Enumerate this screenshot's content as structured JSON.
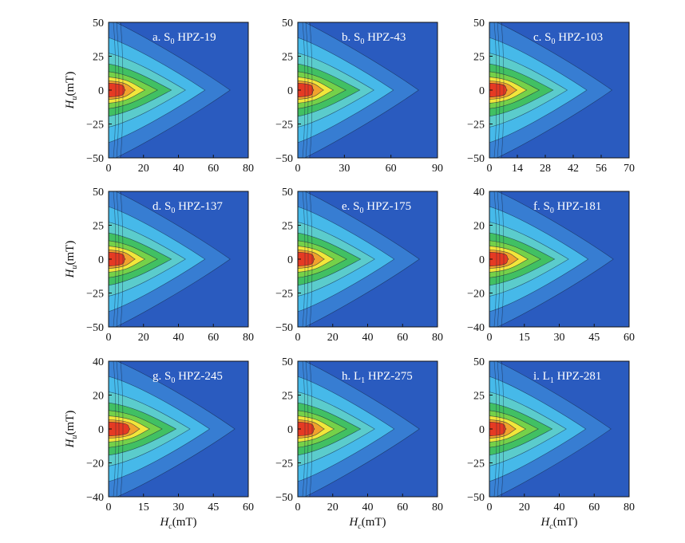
{
  "chart_data": [
    {
      "type": "heatmap",
      "panel_label": "a.",
      "sample_type": "S",
      "sample_sub": "0",
      "sample_id": "HPZ-19",
      "xlabel": "",
      "ylabel": "Hu(mT)",
      "xlim": [
        0,
        80
      ],
      "ylim": [
        -50,
        50
      ],
      "xticks": [
        0,
        20,
        40,
        60,
        80
      ],
      "yticks": [
        -50,
        -25,
        0,
        25,
        50
      ],
      "peak": {
        "x": 4,
        "y": 0
      }
    },
    {
      "type": "heatmap",
      "panel_label": "b.",
      "sample_type": "S",
      "sample_sub": "0",
      "sample_id": "HPZ-43",
      "xlabel": "",
      "ylabel": "",
      "xlim": [
        0,
        90
      ],
      "ylim": [
        -50,
        50
      ],
      "xticks": [
        0,
        30,
        60,
        90
      ],
      "yticks": [
        -50,
        -25,
        0,
        25,
        50
      ],
      "peak": {
        "x": 4,
        "y": 0
      }
    },
    {
      "type": "heatmap",
      "panel_label": "c.",
      "sample_type": "S",
      "sample_sub": "0",
      "sample_id": "HPZ-103",
      "xlabel": "",
      "ylabel": "",
      "xlim": [
        0,
        70
      ],
      "ylim": [
        -50,
        50
      ],
      "xticks": [
        0,
        14,
        28,
        42,
        56,
        70
      ],
      "yticks": [
        -50,
        -25,
        0,
        25,
        50
      ],
      "peak": {
        "x": 4,
        "y": 0
      }
    },
    {
      "type": "heatmap",
      "panel_label": "d.",
      "sample_type": "S",
      "sample_sub": "0",
      "sample_id": "HPZ-137",
      "xlabel": "",
      "ylabel": "Hu(mT)",
      "xlim": [
        0,
        80
      ],
      "ylim": [
        -50,
        50
      ],
      "xticks": [
        0,
        20,
        40,
        60,
        80
      ],
      "yticks": [
        -50,
        -25,
        0,
        25,
        50
      ],
      "peak": {
        "x": 4,
        "y": 0
      }
    },
    {
      "type": "heatmap",
      "panel_label": "e.",
      "sample_type": "S",
      "sample_sub": "0",
      "sample_id": "HPZ-175",
      "xlabel": "",
      "ylabel": "",
      "xlim": [
        0,
        80
      ],
      "ylim": [
        -50,
        50
      ],
      "xticks": [
        0,
        20,
        40,
        60,
        80
      ],
      "yticks": [
        -50,
        -25,
        0,
        25,
        50
      ],
      "peak": {
        "x": 4,
        "y": 0
      }
    },
    {
      "type": "heatmap",
      "panel_label": "f.",
      "sample_type": "S",
      "sample_sub": "0",
      "sample_id": "HPZ-181",
      "xlabel": "",
      "ylabel": "",
      "xlim": [
        0,
        60
      ],
      "ylim": [
        -40,
        40
      ],
      "xticks": [
        0,
        15,
        30,
        45,
        60
      ],
      "yticks": [
        -40,
        -20,
        0,
        20,
        40
      ],
      "peak": {
        "x": 4,
        "y": 0
      }
    },
    {
      "type": "heatmap",
      "panel_label": "g.",
      "sample_type": "S",
      "sample_sub": "0",
      "sample_id": "HPZ-245",
      "xlabel": "Hc(mT)",
      "ylabel": "Hu(mT)",
      "xlim": [
        0,
        60
      ],
      "ylim": [
        -40,
        40
      ],
      "xticks": [
        0,
        15,
        30,
        45,
        60
      ],
      "yticks": [
        -40,
        -20,
        0,
        20,
        40
      ],
      "peak": {
        "x": 5,
        "y": 0
      }
    },
    {
      "type": "heatmap",
      "panel_label": "h.",
      "sample_type": "L",
      "sample_sub": "1",
      "sample_id": "HPZ-275",
      "xlabel": "Hc(mT)",
      "ylabel": "",
      "xlim": [
        0,
        80
      ],
      "ylim": [
        -50,
        50
      ],
      "xticks": [
        0,
        20,
        40,
        60,
        80
      ],
      "yticks": [
        -50,
        -25,
        0,
        25,
        50
      ],
      "peak": {
        "x": 4,
        "y": 0
      }
    },
    {
      "type": "heatmap",
      "panel_label": "i.",
      "sample_type": "L",
      "sample_sub": "1",
      "sample_id": "HPZ-281",
      "xlabel": "Hc(mT)",
      "ylabel": "",
      "xlim": [
        0,
        80
      ],
      "ylim": [
        -50,
        50
      ],
      "xticks": [
        0,
        20,
        40,
        60,
        80
      ],
      "yticks": [
        -50,
        -25,
        0,
        25,
        50
      ],
      "peak": {
        "x": 4,
        "y": 0
      }
    }
  ],
  "colors": {
    "background": "#2a5bbf",
    "low": "#3a84d6",
    "mid": "#49c4ee",
    "green": "#3fbf58",
    "yellow": "#f2e63a",
    "orange": "#f2a22d",
    "peak": "#e53a23",
    "contour": "#14213a"
  }
}
